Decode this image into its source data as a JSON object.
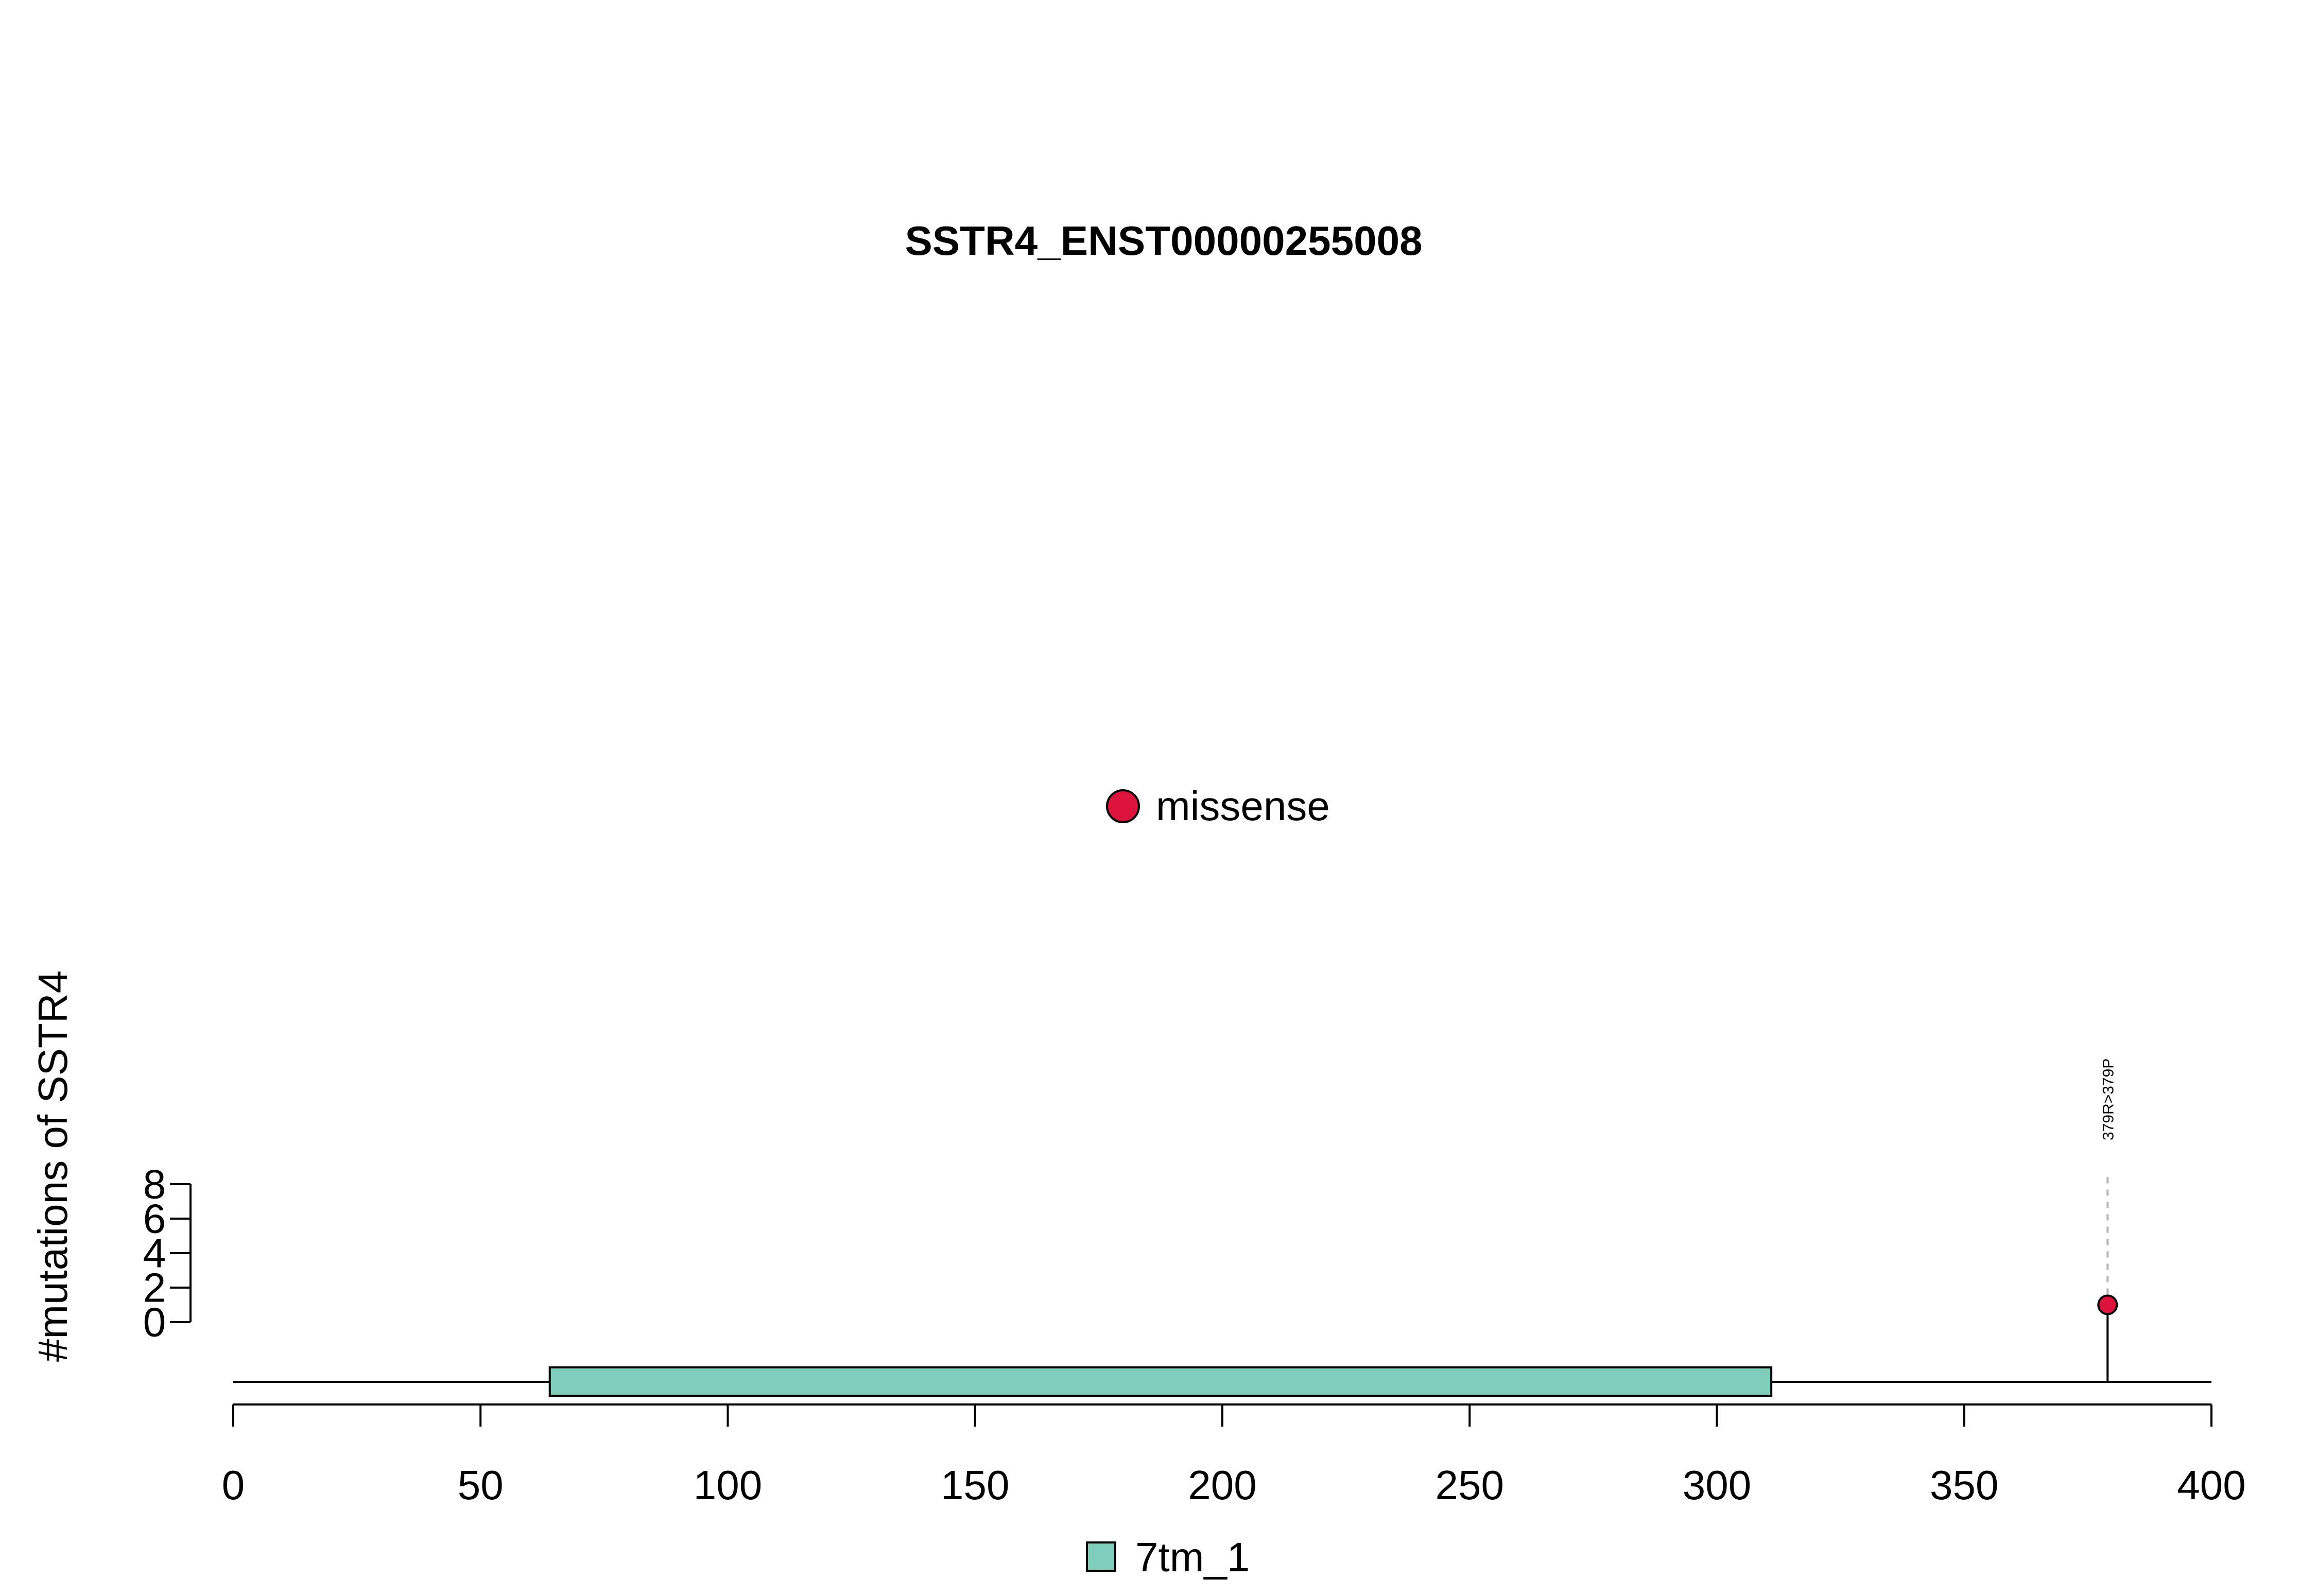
{
  "chart_data": {
    "type": "lollipop",
    "title": "SSTR4_ENST00000255008",
    "xlabel": "",
    "ylabel": "#mutations of SSTR4",
    "xlim": [
      0,
      400
    ],
    "x_ticks": [
      0,
      50,
      100,
      150,
      200,
      250,
      300,
      350,
      400
    ],
    "y_ticks": [
      0,
      2,
      4,
      6,
      8
    ],
    "ylim": [
      0,
      8
    ],
    "protein_length": 400,
    "domains": [
      {
        "name": "7tm_1",
        "start": 64,
        "end": 311,
        "color": "#7FCDBB"
      }
    ],
    "mutations": [
      {
        "position": 379,
        "count": 1,
        "type": "missense",
        "label": "379R>379P"
      }
    ],
    "legend_mutation": [
      {
        "name": "missense",
        "color": "#DC143C"
      }
    ],
    "legend_domain": [
      {
        "name": "7tm_1",
        "color": "#7FCDBB"
      }
    ]
  }
}
